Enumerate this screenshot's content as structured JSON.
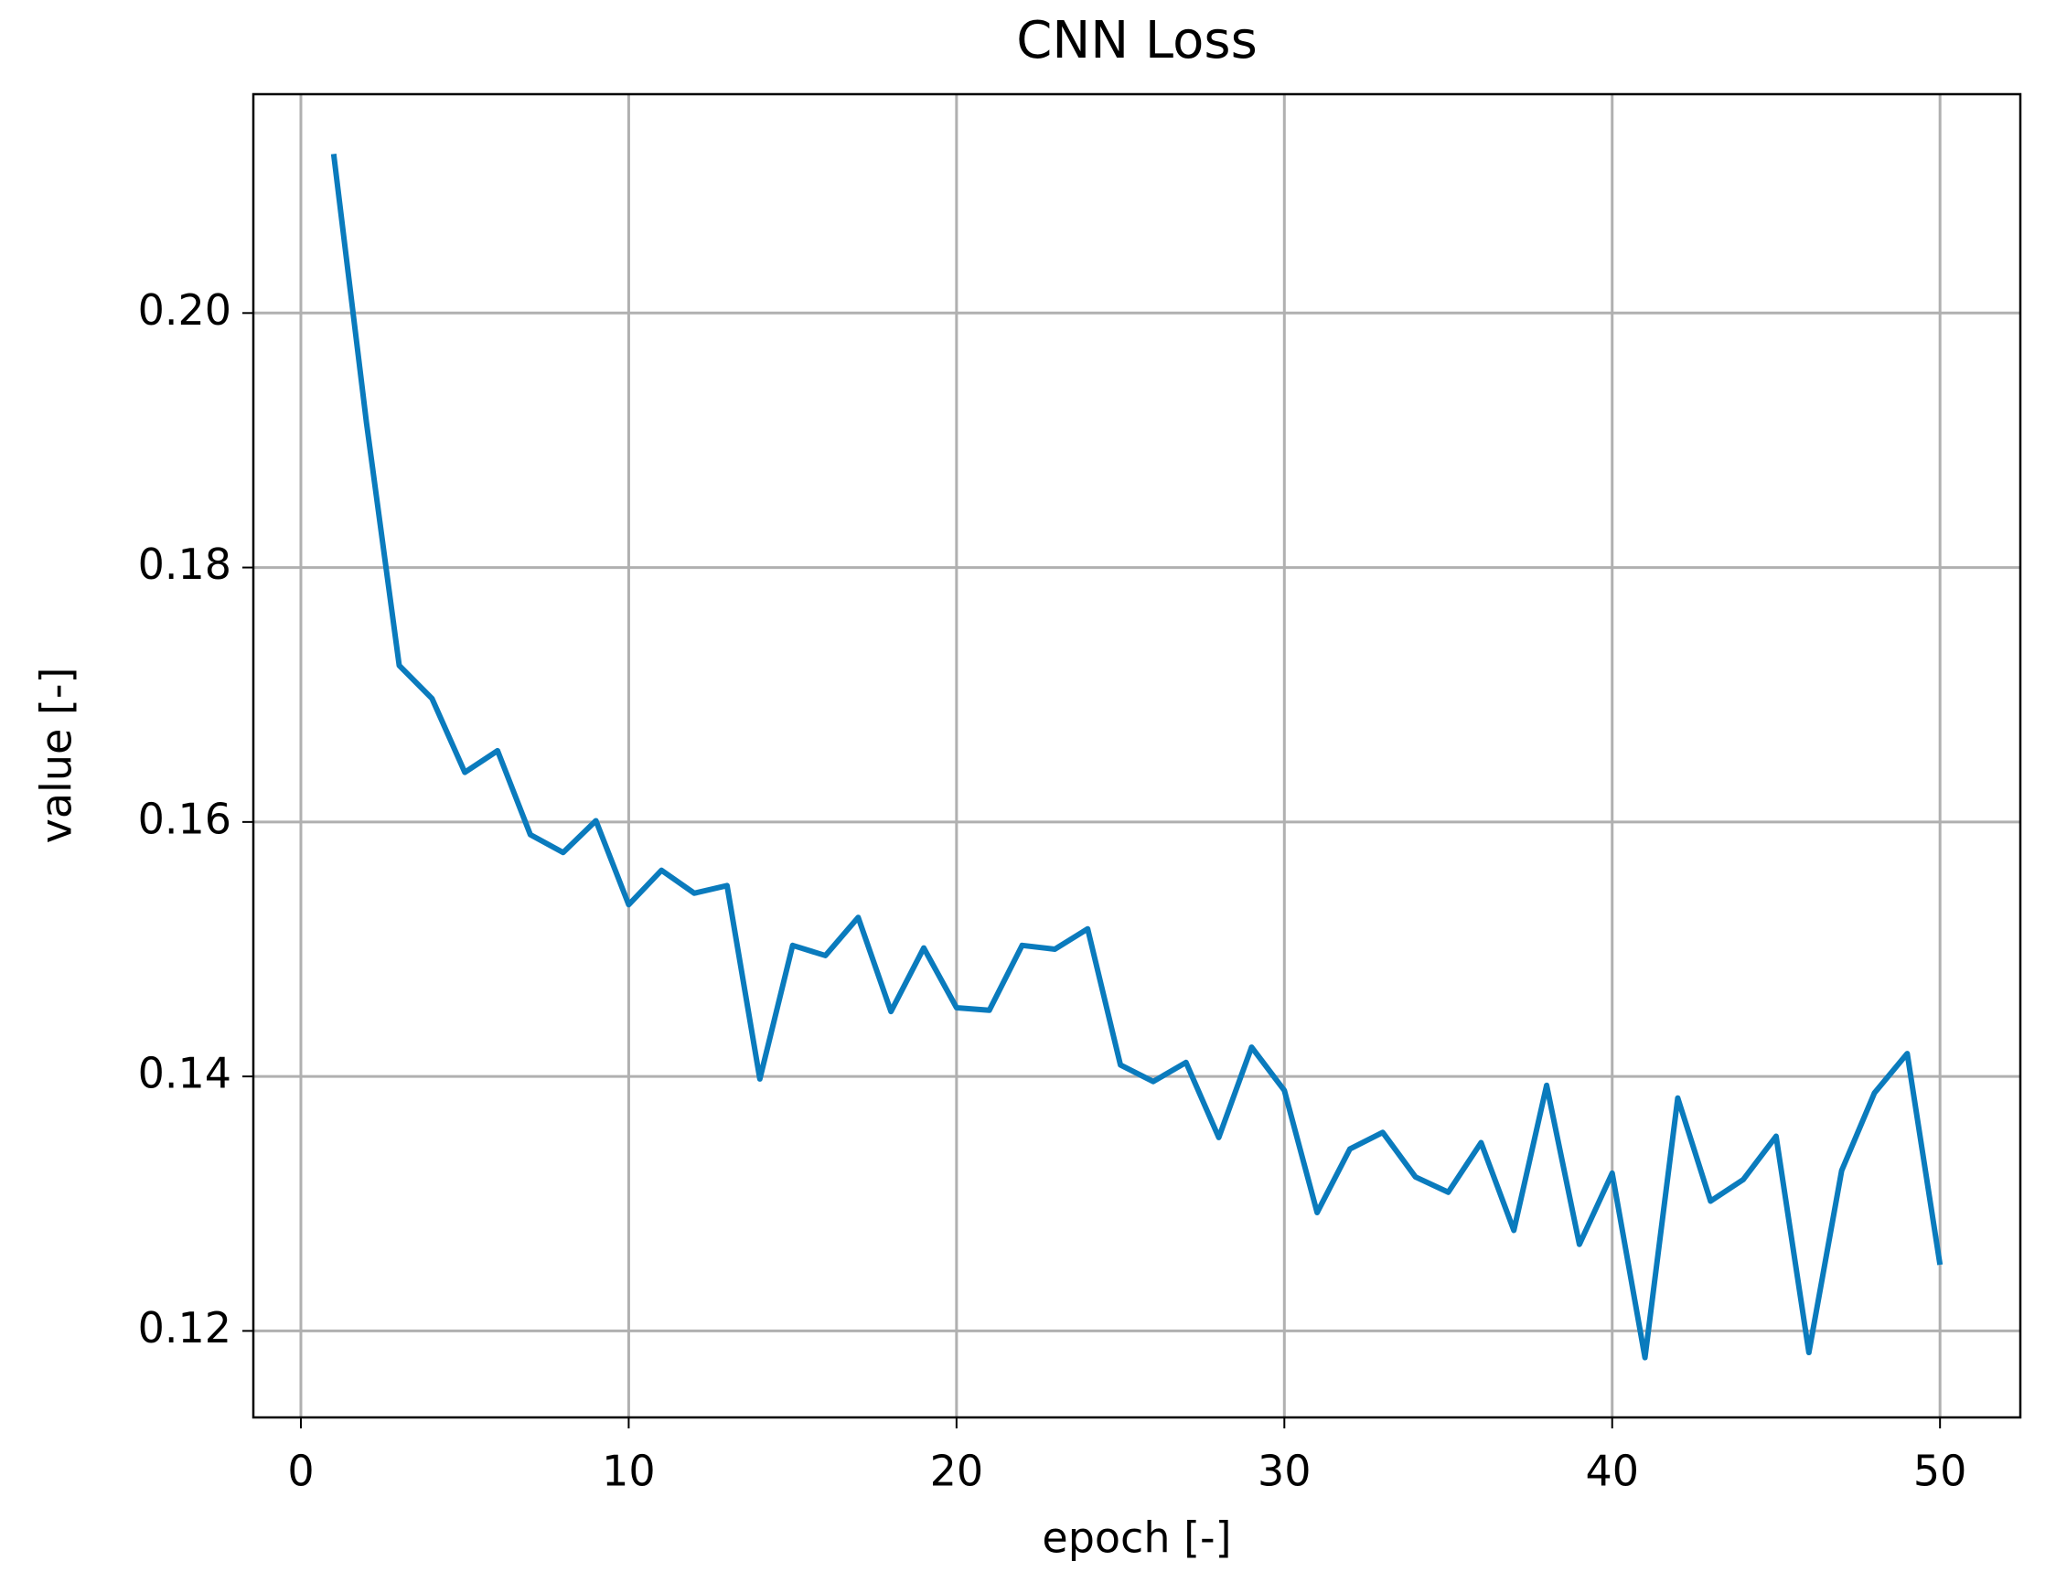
{
  "chart_data": {
    "type": "line",
    "title": "CNN Loss",
    "x_label": "epoch [-]",
    "y_label": "value [-]",
    "x": [
      1,
      2,
      3,
      4,
      5,
      6,
      7,
      8,
      9,
      10,
      11,
      12,
      13,
      14,
      15,
      16,
      17,
      18,
      19,
      20,
      21,
      22,
      23,
      24,
      25,
      26,
      27,
      28,
      29,
      30,
      31,
      32,
      33,
      34,
      35,
      36,
      37,
      38,
      39,
      40,
      41,
      42,
      43,
      44,
      45,
      46,
      47,
      48,
      49,
      50
    ],
    "values": [
      0.2125,
      0.1914,
      0.1723,
      0.1697,
      0.1639,
      0.1656,
      0.159,
      0.1576,
      0.1601,
      0.1535,
      0.1562,
      0.1544,
      0.155,
      0.1398,
      0.1503,
      0.1495,
      0.1525,
      0.1451,
      0.1501,
      0.1454,
      0.1452,
      0.1503,
      0.15,
      0.1516,
      0.1409,
      0.1396,
      0.1411,
      0.1352,
      0.1423,
      0.1389,
      0.1293,
      0.1343,
      0.1356,
      0.1321,
      0.1309,
      0.1348,
      0.1279,
      0.1393,
      0.1268,
      0.1324,
      0.1179,
      0.1383,
      0.1302,
      0.1319,
      0.1353,
      0.1183,
      0.1326,
      0.1387,
      0.1418,
      0.1252
    ],
    "color": "#0a7bbd",
    "xlim": [
      -1.45,
      52.45
    ],
    "xticks": [
      0,
      10,
      20,
      30,
      40,
      50
    ],
    "ylim": [
      0.1132,
      0.2172
    ],
    "yticks": [
      0.12,
      0.14,
      0.16,
      0.18,
      {
        "value": 0.2,
        "label": "0.20"
      }
    ],
    "grid": true
  }
}
